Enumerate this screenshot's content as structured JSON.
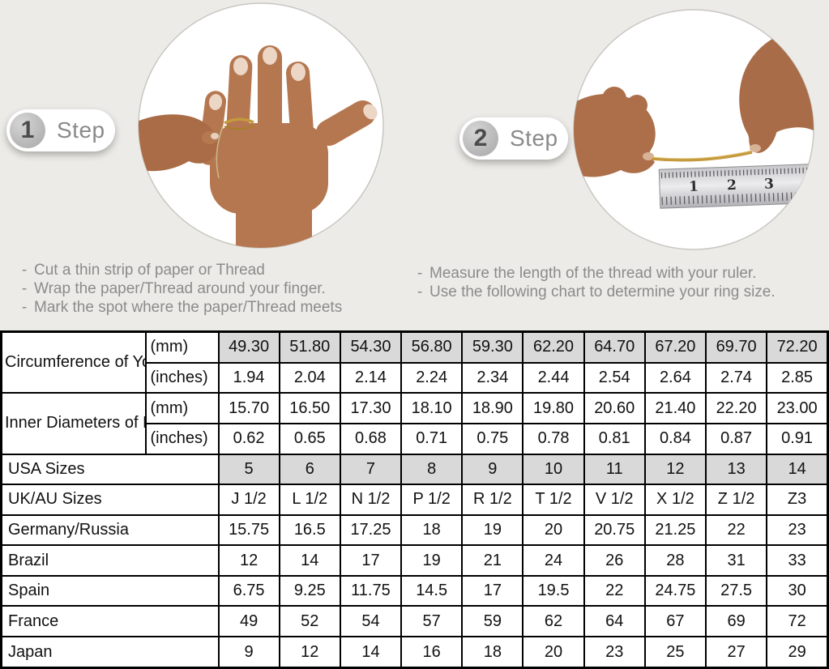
{
  "page": {
    "background_color": "#ecebe7",
    "highlight_cell_color": "#d9d9d9",
    "thread_color": "#c59a3f"
  },
  "steps": [
    {
      "number": "1",
      "label": "Step",
      "image": "hand-with-thread-wrapped-around-ring-finger",
      "instructions": [
        "Cut a thin strip of paper or Thread",
        "Wrap the paper/Thread around your finger.",
        "Mark the spot where the paper/Thread meets"
      ]
    },
    {
      "number": "2",
      "label": "Step",
      "image": "hands-measuring-thread-length-with-ruler",
      "ruler_numbers": [
        "1",
        "2",
        "3"
      ],
      "instructions": [
        "Measure the length of the thread with your ruler.",
        "Use the following chart to determine your ring size."
      ]
    }
  ],
  "chart_data": {
    "type": "table",
    "columns_count": 10,
    "measurement_groups": [
      {
        "label": "Circumference of Your Finger",
        "rows": [
          {
            "unit": "(mm)",
            "highlighted": true,
            "values": [
              "49.30",
              "51.80",
              "54.30",
              "56.80",
              "59.30",
              "62.20",
              "64.70",
              "67.20",
              "69.70",
              "72.20"
            ]
          },
          {
            "unit": "(inches)",
            "highlighted": false,
            "values": [
              "1.94",
              "2.04",
              "2.14",
              "2.24",
              "2.34",
              "2.44",
              "2.54",
              "2.64",
              "2.74",
              "2.85"
            ]
          }
        ]
      },
      {
        "label": "Inner Diameters of Rings",
        "rows": [
          {
            "unit": "(mm)",
            "highlighted": false,
            "values": [
              "15.70",
              "16.50",
              "17.30",
              "18.10",
              "18.90",
              "19.80",
              "20.60",
              "21.40",
              "22.20",
              "23.00"
            ]
          },
          {
            "unit": "(inches)",
            "highlighted": false,
            "values": [
              "0.62",
              "0.65",
              "0.68",
              "0.71",
              "0.75",
              "0.78",
              "0.81",
              "0.84",
              "0.87",
              "0.91"
            ]
          }
        ]
      }
    ],
    "size_rows": [
      {
        "label": "USA Sizes",
        "highlighted": true,
        "values": [
          "5",
          "6",
          "7",
          "8",
          "9",
          "10",
          "11",
          "12",
          "13",
          "14"
        ]
      },
      {
        "label": "UK/AU Sizes",
        "highlighted": false,
        "values": [
          "J 1/2",
          "L 1/2",
          "N 1/2",
          "P 1/2",
          "R 1/2",
          "T 1/2",
          "V 1/2",
          "X 1/2",
          "Z 1/2",
          "Z3"
        ]
      },
      {
        "label": "Germany/Russia",
        "highlighted": false,
        "values": [
          "15.75",
          "16.5",
          "17.25",
          "18",
          "19",
          "20",
          "20.75",
          "21.25",
          "22",
          "23"
        ]
      },
      {
        "label": "Brazil",
        "highlighted": false,
        "values": [
          "12",
          "14",
          "17",
          "19",
          "21",
          "24",
          "26",
          "28",
          "31",
          "33"
        ]
      },
      {
        "label": "Spain",
        "highlighted": false,
        "values": [
          "6.75",
          "9.25",
          "11.75",
          "14.5",
          "17",
          "19.5",
          "22",
          "24.75",
          "27.5",
          "30"
        ]
      },
      {
        "label": "France",
        "highlighted": false,
        "values": [
          "49",
          "52",
          "54",
          "57",
          "59",
          "62",
          "64",
          "67",
          "69",
          "72"
        ]
      },
      {
        "label": "Japan",
        "highlighted": false,
        "values": [
          "9",
          "12",
          "14",
          "16",
          "18",
          "20",
          "23",
          "25",
          "27",
          "29"
        ]
      }
    ]
  }
}
